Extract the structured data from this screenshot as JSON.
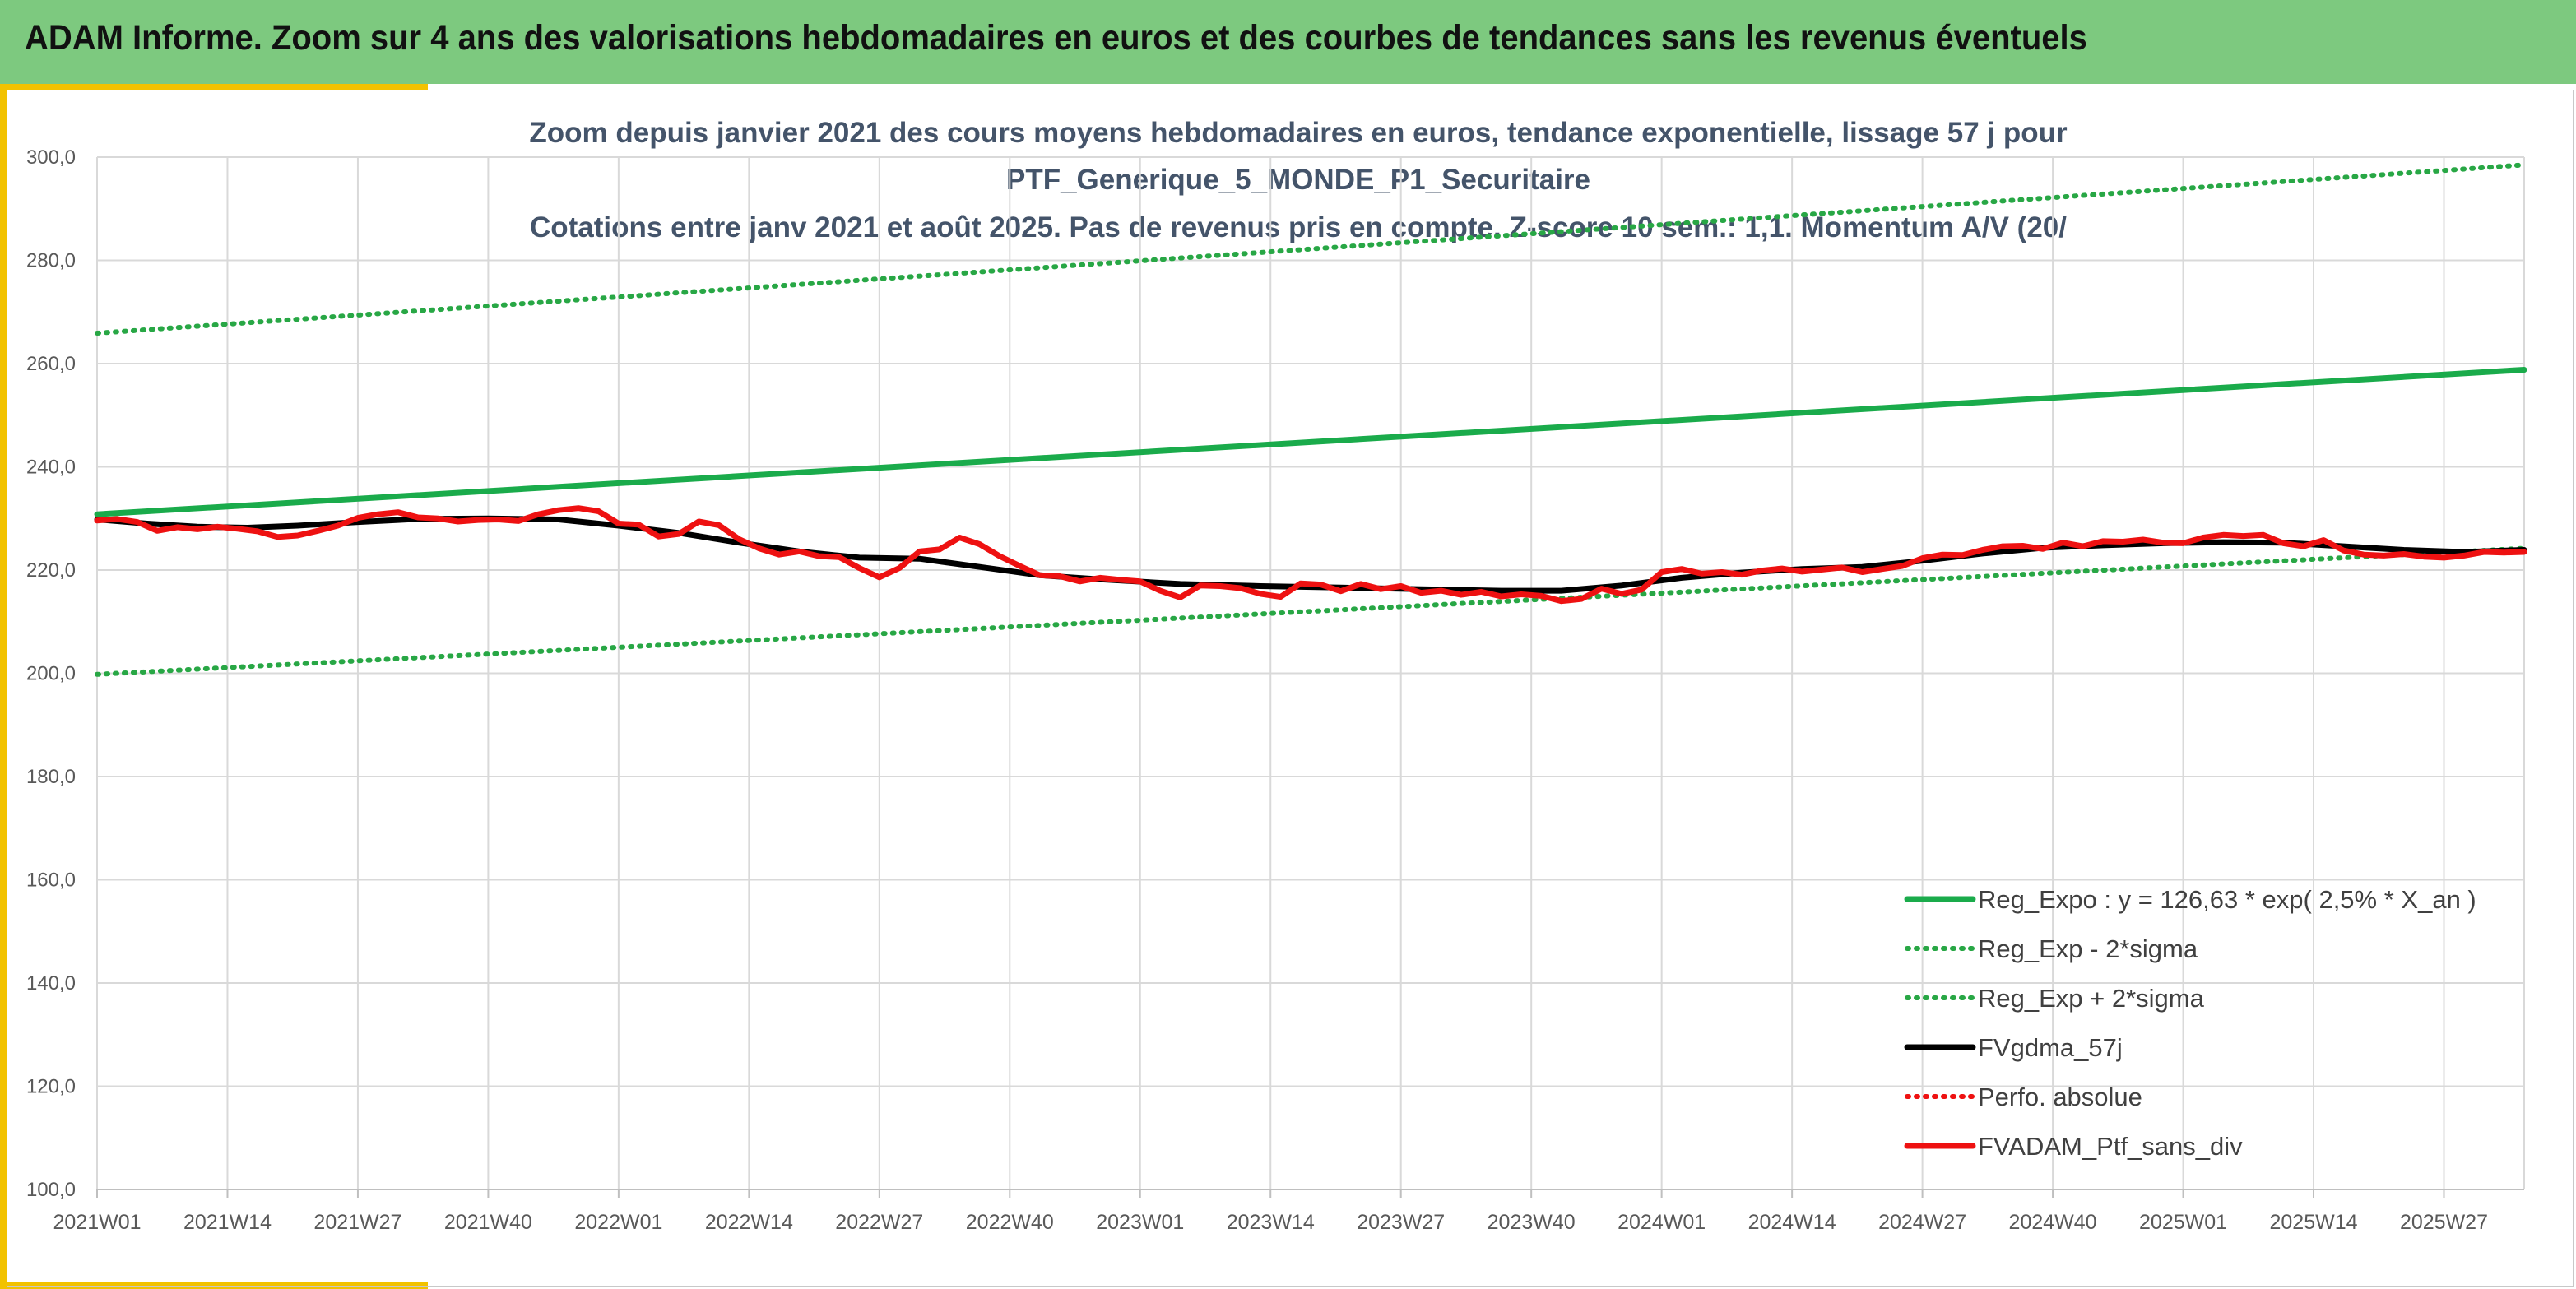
{
  "banner": {
    "title": "ADAM Informe. Zoom sur 4 ans des valorisations hebdomadaires en euros et des courbes de tendances sans les revenus éventuels"
  },
  "colors": {
    "banner": "#7dc97f",
    "accent_yellow": "#f2c200",
    "trend_green": "#1aab4b",
    "band_green": "#28a745",
    "smooth_black": "#000000",
    "price_red": "#ee1111"
  },
  "chart_data": {
    "type": "line",
    "title": [
      "Zoom depuis janvier 2021 des cours moyens hebdomadaires en euros, tendance exponentielle, lissage 57 j pour",
      "PTF_Generique_5_MONDE_P1_Securitaire",
      "Cotations entre janv 2021 et août 2025. Pas de revenus pris en compte. Z-score 10 sem.: 1,1. Momentum A/V (20/"
    ],
    "xlabel": "",
    "ylabel": "",
    "ylim": [
      100,
      300
    ],
    "xlim_weeks": [
      0,
      242
    ],
    "grid": true,
    "legend_position": "bottom-right",
    "x_ticks": [
      {
        "label": "2021W01",
        "week": 0
      },
      {
        "label": "2021W14",
        "week": 13
      },
      {
        "label": "2021W27",
        "week": 26
      },
      {
        "label": "2021W40",
        "week": 39
      },
      {
        "label": "2022W01",
        "week": 52
      },
      {
        "label": "2022W14",
        "week": 65
      },
      {
        "label": "2022W27",
        "week": 78
      },
      {
        "label": "2022W40",
        "week": 91
      },
      {
        "label": "2023W01",
        "week": 104
      },
      {
        "label": "2023W14",
        "week": 117
      },
      {
        "label": "2023W27",
        "week": 130
      },
      {
        "label": "2023W40",
        "week": 143
      },
      {
        "label": "2024W01",
        "week": 156
      },
      {
        "label": "2024W14",
        "week": 169
      },
      {
        "label": "2024W27",
        "week": 182
      },
      {
        "label": "2024W40",
        "week": 195
      },
      {
        "label": "2025W01",
        "week": 208
      },
      {
        "label": "2025W14",
        "week": 221
      },
      {
        "label": "2025W27",
        "week": 234
      }
    ],
    "y_ticks": [
      "100,0",
      "120,0",
      "140,0",
      "160,0",
      "180,0",
      "200,0",
      "220,0",
      "240,0",
      "260,0",
      "280,0",
      "300,0"
    ],
    "series": [
      {
        "name": "Reg_Expo : y = 126,63 * exp( 2,5% *  X_an )",
        "style": "solid",
        "color": "#1aab4b",
        "points": [
          [
            0,
            230.8
          ],
          [
            242,
            258.8
          ]
        ]
      },
      {
        "name": "Reg_Exp - 2*sigma",
        "style": "dotted",
        "color": "#28a745",
        "points": [
          [
            0,
            199.8
          ],
          [
            242,
            224.2
          ]
        ]
      },
      {
        "name": "Reg_Exp + 2*sigma",
        "style": "dotted",
        "color": "#28a745",
        "points": [
          [
            0,
            265.9
          ],
          [
            242,
            298.5
          ]
        ]
      },
      {
        "name": "FVgdma_57j",
        "style": "solid",
        "color": "#000000",
        "points": [
          [
            0,
            229.8
          ],
          [
            5,
            229.0
          ],
          [
            10,
            228.4
          ],
          [
            15,
            228.2
          ],
          [
            20,
            228.6
          ],
          [
            26,
            229.3
          ],
          [
            32,
            229.9
          ],
          [
            39,
            230.0
          ],
          [
            46,
            229.8
          ],
          [
            52,
            228.6
          ],
          [
            58,
            227.2
          ],
          [
            64,
            225.3
          ],
          [
            70,
            223.6
          ],
          [
            76,
            222.4
          ],
          [
            82,
            222.2
          ],
          [
            88,
            220.6
          ],
          [
            94,
            219.0
          ],
          [
            100,
            218.2
          ],
          [
            108,
            217.3
          ],
          [
            116,
            216.9
          ],
          [
            124,
            216.6
          ],
          [
            132,
            216.3
          ],
          [
            140,
            216.0
          ],
          [
            146,
            216.0
          ],
          [
            152,
            217.0
          ],
          [
            158,
            218.5
          ],
          [
            164,
            219.5
          ],
          [
            170,
            220.2
          ],
          [
            176,
            220.6
          ],
          [
            182,
            221.8
          ],
          [
            188,
            223.2
          ],
          [
            194,
            224.3
          ],
          [
            200,
            224.8
          ],
          [
            206,
            225.2
          ],
          [
            212,
            225.4
          ],
          [
            218,
            225.3
          ],
          [
            224,
            224.6
          ],
          [
            230,
            223.9
          ],
          [
            236,
            223.5
          ],
          [
            242,
            223.9
          ]
        ]
      },
      {
        "name": "Perfo. absolue",
        "style": "dotted",
        "color": "#ee1111",
        "points": []
      },
      {
        "name": "FVADAM_Ptf_sans_div",
        "style": "solid",
        "color": "#ee1111",
        "points": [
          [
            0,
            229.6
          ],
          [
            2,
            229.9
          ],
          [
            4,
            229.3
          ],
          [
            6,
            227.6
          ],
          [
            8,
            228.3
          ],
          [
            10,
            227.9
          ],
          [
            12,
            228.4
          ],
          [
            14,
            228.0
          ],
          [
            16,
            227.5
          ],
          [
            18,
            226.4
          ],
          [
            20,
            226.7
          ],
          [
            22,
            227.6
          ],
          [
            24,
            228.6
          ],
          [
            26,
            230.1
          ],
          [
            28,
            230.8
          ],
          [
            30,
            231.2
          ],
          [
            32,
            230.2
          ],
          [
            34,
            230.0
          ],
          [
            36,
            229.4
          ],
          [
            38,
            229.7
          ],
          [
            40,
            229.8
          ],
          [
            42,
            229.5
          ],
          [
            44,
            230.8
          ],
          [
            46,
            231.6
          ],
          [
            48,
            232.0
          ],
          [
            50,
            231.4
          ],
          [
            52,
            229.0
          ],
          [
            54,
            228.8
          ],
          [
            56,
            226.5
          ],
          [
            58,
            227.0
          ],
          [
            60,
            229.4
          ],
          [
            62,
            228.7
          ],
          [
            64,
            226.0
          ],
          [
            66,
            224.2
          ],
          [
            68,
            223.0
          ],
          [
            70,
            223.6
          ],
          [
            72,
            222.7
          ],
          [
            74,
            222.5
          ],
          [
            76,
            220.4
          ],
          [
            78,
            218.6
          ],
          [
            80,
            220.4
          ],
          [
            82,
            223.6
          ],
          [
            84,
            224.0
          ],
          [
            86,
            226.3
          ],
          [
            88,
            225.0
          ],
          [
            90,
            222.7
          ],
          [
            92,
            220.8
          ],
          [
            94,
            219.0
          ],
          [
            96,
            218.8
          ],
          [
            98,
            217.8
          ],
          [
            100,
            218.5
          ],
          [
            102,
            218.1
          ],
          [
            104,
            217.8
          ],
          [
            106,
            216.0
          ],
          [
            108,
            214.7
          ],
          [
            110,
            217.0
          ],
          [
            112,
            216.9
          ],
          [
            114,
            216.5
          ],
          [
            116,
            215.4
          ],
          [
            118,
            214.8
          ],
          [
            120,
            217.4
          ],
          [
            122,
            217.2
          ],
          [
            124,
            215.9
          ],
          [
            126,
            217.3
          ],
          [
            128,
            216.3
          ],
          [
            130,
            216.9
          ],
          [
            132,
            215.6
          ],
          [
            134,
            216.0
          ],
          [
            136,
            215.2
          ],
          [
            138,
            215.8
          ],
          [
            140,
            214.9
          ],
          [
            142,
            215.3
          ],
          [
            144,
            215.0
          ],
          [
            146,
            214.0
          ],
          [
            148,
            214.4
          ],
          [
            150,
            216.4
          ],
          [
            152,
            215.4
          ],
          [
            154,
            216.2
          ],
          [
            156,
            219.6
          ],
          [
            158,
            220.2
          ],
          [
            160,
            219.3
          ],
          [
            162,
            219.6
          ],
          [
            164,
            219.1
          ],
          [
            166,
            219.9
          ],
          [
            168,
            220.3
          ],
          [
            170,
            219.7
          ],
          [
            172,
            220.1
          ],
          [
            174,
            220.5
          ],
          [
            176,
            219.6
          ],
          [
            178,
            220.2
          ],
          [
            180,
            220.8
          ],
          [
            182,
            222.3
          ],
          [
            184,
            223.0
          ],
          [
            186,
            222.9
          ],
          [
            188,
            223.9
          ],
          [
            190,
            224.6
          ],
          [
            192,
            224.7
          ],
          [
            194,
            224.1
          ],
          [
            196,
            225.3
          ],
          [
            198,
            224.6
          ],
          [
            200,
            225.6
          ],
          [
            202,
            225.5
          ],
          [
            204,
            225.9
          ],
          [
            206,
            225.3
          ],
          [
            208,
            225.2
          ],
          [
            210,
            226.3
          ],
          [
            212,
            226.8
          ],
          [
            214,
            226.6
          ],
          [
            216,
            226.8
          ],
          [
            218,
            225.2
          ],
          [
            220,
            224.6
          ],
          [
            222,
            225.8
          ],
          [
            224,
            223.8
          ],
          [
            226,
            223.0
          ],
          [
            228,
            222.8
          ],
          [
            230,
            223.1
          ],
          [
            232,
            222.6
          ],
          [
            234,
            222.4
          ],
          [
            236,
            222.8
          ],
          [
            238,
            223.5
          ],
          [
            240,
            223.4
          ],
          [
            242,
            223.5
          ]
        ]
      }
    ]
  }
}
